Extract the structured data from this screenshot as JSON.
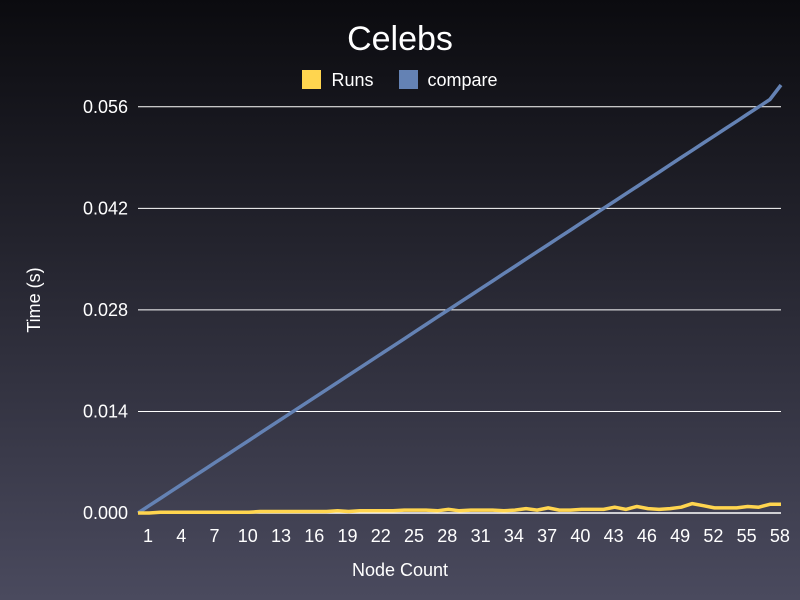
{
  "chart_data": {
    "type": "line",
    "title": "Celebs",
    "xlabel": "Node Count",
    "ylabel": "Time (s)",
    "x": [
      1,
      2,
      3,
      4,
      5,
      6,
      7,
      8,
      9,
      10,
      11,
      12,
      13,
      14,
      15,
      16,
      17,
      18,
      19,
      20,
      21,
      22,
      23,
      24,
      25,
      26,
      27,
      28,
      29,
      30,
      31,
      32,
      33,
      34,
      35,
      36,
      37,
      38,
      39,
      40,
      41,
      42,
      43,
      44,
      45,
      46,
      47,
      48,
      49,
      50,
      51,
      52,
      53,
      54,
      55,
      56,
      57,
      58,
      59
    ],
    "xticks": [
      1,
      4,
      7,
      10,
      13,
      16,
      19,
      22,
      25,
      28,
      31,
      34,
      37,
      40,
      43,
      46,
      49,
      52,
      55,
      58
    ],
    "yticks": [
      "0.000",
      "0.014",
      "0.028",
      "0.042",
      "0.056"
    ],
    "ylim": [
      0,
      0.059
    ],
    "grid": "horizontal",
    "legend_position": "top",
    "series": [
      {
        "name": "Runs",
        "color": "#ffd54f",
        "values": [
          0.0,
          0.0,
          0.0001,
          0.0001,
          0.0001,
          0.0001,
          0.0001,
          0.0001,
          0.0001,
          0.0001,
          0.0001,
          0.0002,
          0.0002,
          0.0002,
          0.0002,
          0.0002,
          0.0002,
          0.0002,
          0.0003,
          0.0002,
          0.0003,
          0.0003,
          0.0003,
          0.0003,
          0.0004,
          0.0004,
          0.0004,
          0.0003,
          0.0005,
          0.0003,
          0.0004,
          0.0004,
          0.0004,
          0.0003,
          0.0004,
          0.0006,
          0.0004,
          0.0007,
          0.0004,
          0.0004,
          0.0005,
          0.0005,
          0.0005,
          0.0008,
          0.0005,
          0.0009,
          0.0006,
          0.0005,
          0.0006,
          0.0008,
          0.0013,
          0.001,
          0.0007,
          0.0007,
          0.0007,
          0.0009,
          0.0008,
          0.0012,
          0.0012
        ]
      },
      {
        "name": "compare",
        "color": "#6482b4",
        "values": [
          0.0,
          0.001,
          0.002,
          0.003,
          0.004,
          0.005,
          0.006,
          0.007,
          0.008,
          0.009,
          0.01,
          0.011,
          0.012,
          0.013,
          0.014,
          0.015,
          0.016,
          0.017,
          0.018,
          0.019,
          0.02,
          0.021,
          0.022,
          0.023,
          0.024,
          0.025,
          0.026,
          0.027,
          0.028,
          0.029,
          0.03,
          0.031,
          0.032,
          0.033,
          0.034,
          0.035,
          0.036,
          0.037,
          0.038,
          0.039,
          0.04,
          0.041,
          0.042,
          0.043,
          0.044,
          0.045,
          0.046,
          0.047,
          0.048,
          0.049,
          0.05,
          0.051,
          0.052,
          0.053,
          0.054,
          0.055,
          0.056,
          0.057,
          0.059
        ]
      }
    ]
  }
}
